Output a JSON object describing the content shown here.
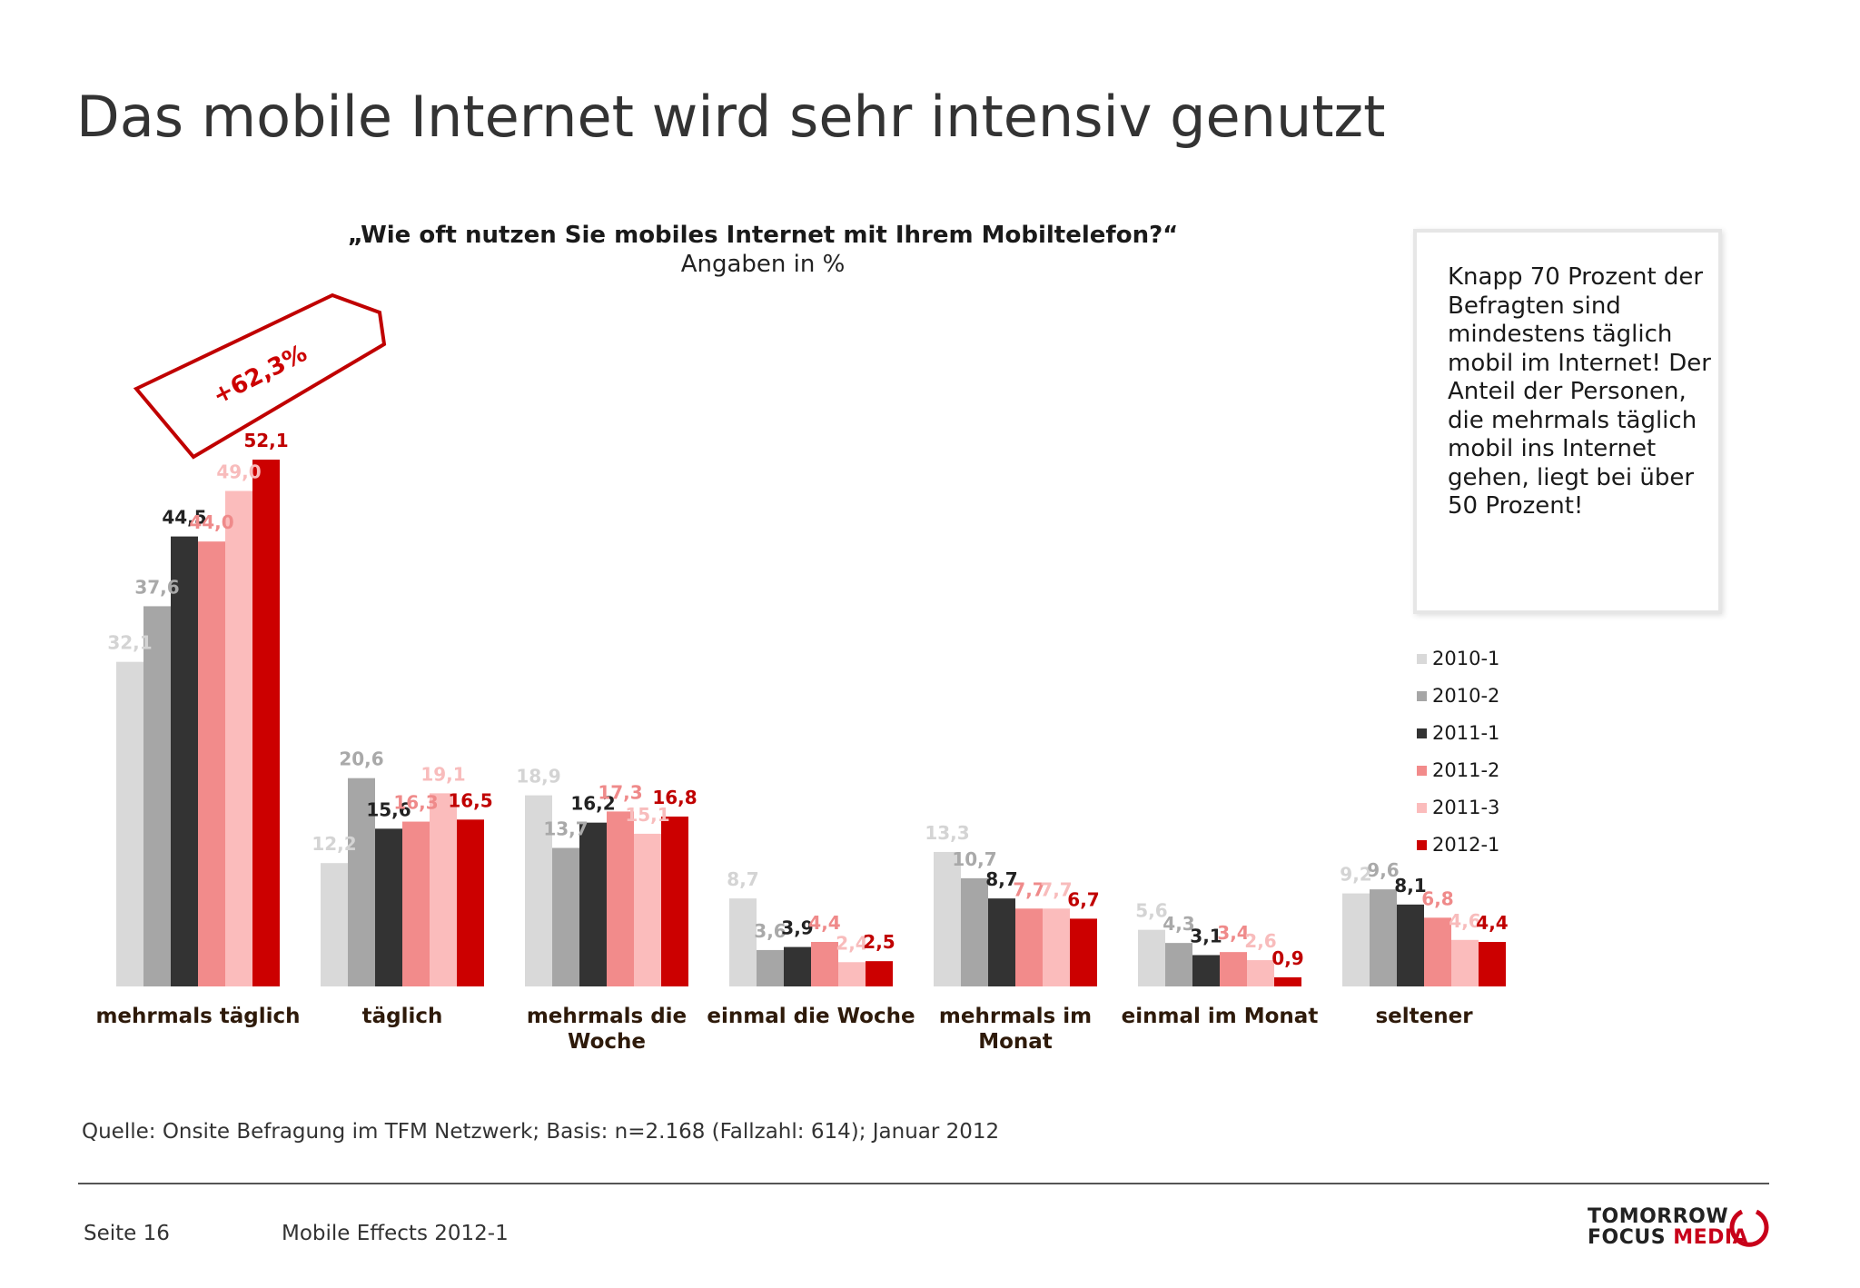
{
  "title": "Das mobile Internet wird sehr intensiv genutzt",
  "question": "„Wie oft nutzen Sie mobiles Internet mit Ihrem Mobiltelefon?“",
  "unit_note": "Angaben in %",
  "callout": "Knapp 70 Prozent der Befragten sind mindestens täglich mobil im Internet! Der Anteil der Personen, die mehrmals täglich mobil ins Internet gehen, liegt bei über 50 Prozent!",
  "growth_tag": "+62,3%",
  "source": "Quelle: Onsite Befragung im TFM Netzwerk; Basis: n=2.168 (Fallzahl: 614); Januar 2012",
  "footer": {
    "page": "Seite 16",
    "deck": "Mobile Effects 2012-1",
    "brand_line1": "TOMORROW",
    "brand_line2a": "FOCUS ",
    "brand_line2b": "MEDIA"
  },
  "colors": {
    "2010-1": "#d9d9d9",
    "2010-2": "#a6a6a6",
    "2011-1": "#333333",
    "2011-2": "#f28b8b",
    "2011-3": "#fbbcbc",
    "2012-1": "#cc0000",
    "accent": "#c8001a"
  },
  "chart_data": {
    "type": "bar",
    "categories": [
      "mehrmals täglich",
      "täglich",
      "mehrmals die Woche",
      "einmal die Woche",
      "mehrmals im Monat",
      "einmal im Monat",
      "seltener"
    ],
    "series": [
      {
        "name": "2010-1",
        "values": [
          "32,1",
          "12,2",
          "18,9",
          "8,7",
          "13,3",
          "5,6",
          "9,2"
        ]
      },
      {
        "name": "2010-2",
        "values": [
          "37,6",
          "20,6",
          "13,7",
          "3,6",
          "10,7",
          "4,3",
          "9,6"
        ]
      },
      {
        "name": "2011-1",
        "values": [
          "44,5",
          "15,6",
          "16,2",
          "3,9",
          "8,7",
          "3,1",
          "8,1"
        ]
      },
      {
        "name": "2011-2",
        "values": [
          "44,0",
          "16,3",
          "17,3",
          "4,4",
          "7,7",
          "3,4",
          "6,8"
        ]
      },
      {
        "name": "2011-3",
        "values": [
          "49,0",
          "19,1",
          "15,1",
          "2,4",
          "7,7",
          "2,6",
          "4,6"
        ]
      },
      {
        "name": "2012-1",
        "values": [
          "52,1",
          "16,5",
          "16,8",
          "2,5",
          "6,7",
          "0,9",
          "4,4"
        ]
      }
    ],
    "ylim": [
      0,
      52.1
    ],
    "legend_position": "right",
    "grid": false
  }
}
